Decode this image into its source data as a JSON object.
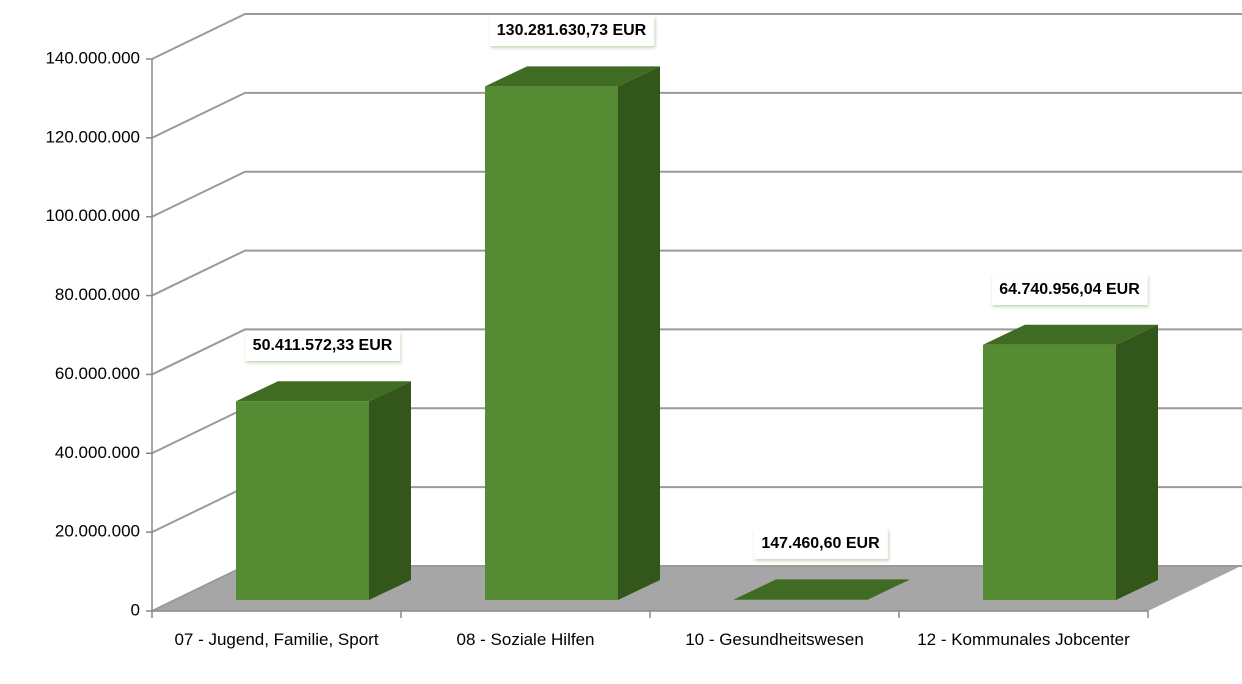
{
  "chart_data": {
    "type": "bar3d",
    "categories": [
      "07 - Jugend, Familie, Sport",
      "08 - Soziale Hilfen",
      "10 - Gesundheitswesen",
      "12 - Kommunales Jobcenter"
    ],
    "values": [
      50411572.33,
      130281630.73,
      147460.6,
      64740956.04
    ],
    "value_labels": [
      "50.411.572,33 EUR",
      "130.281.630,73 EUR",
      "147.460,60 EUR",
      "64.740.956,04 EUR"
    ],
    "color": "#548b33",
    "ylim": [
      0,
      140000000
    ],
    "yticks": [
      0,
      {
        "value": 20000000,
        "label": "20.000.000"
      },
      {
        "value": 40000000,
        "label": "40.000.000"
      },
      {
        "value": 60000000,
        "label": "60.000.000"
      },
      {
        "value": 80000000,
        "label": "80.000.000"
      },
      {
        "value": 100000000,
        "label": "100.000.000"
      },
      {
        "value": 120000000,
        "label": "120.000.000"
      },
      {
        "value": 140000000,
        "label": "140.000.000"
      }
    ],
    "grid": true
  }
}
